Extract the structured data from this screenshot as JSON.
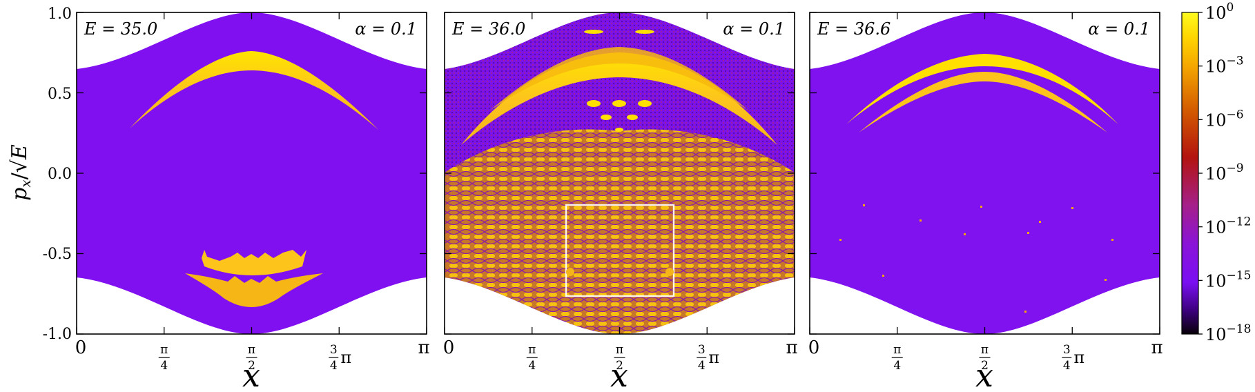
{
  "figure": {
    "ylabel": "p_x/√E",
    "ylabel_parts": {
      "p": "p",
      "sub": "x",
      "slash": "/",
      "sqrt": "√",
      "E": "E"
    }
  },
  "chart_data": [
    {
      "type": "heatmap",
      "panel": "left",
      "annotations": {
        "energy_label": "E = 35.0",
        "alpha_label": "α = 0.1"
      },
      "energy": 35.0,
      "alpha": 0.1,
      "xlabel": "x",
      "xlim": [
        0,
        3.14159
      ],
      "ylim": [
        -1.0,
        1.0
      ],
      "xticks": [
        "0",
        "π/4",
        "π/2",
        "3/4π",
        "π"
      ],
      "yticks": [
        "1.0",
        "0.5",
        "0.0",
        "-0.5",
        "-1.0"
      ],
      "background_level": "1e-14",
      "regions": [
        {
          "name": "upper-arc",
          "level": "1e0",
          "x_range": [
            0.55,
            2.6
          ],
          "y_peak": 0.76
        },
        {
          "name": "lower-crown",
          "level": "1e-1",
          "x_range": [
            1.15,
            2.0
          ],
          "y": -0.6
        },
        {
          "name": "lower-crown-2",
          "level": "1e-1",
          "x_range": [
            1.0,
            2.1
          ],
          "y": -0.73
        }
      ]
    },
    {
      "type": "heatmap",
      "panel": "middle",
      "annotations": {
        "energy_label": "E = 36.0",
        "alpha_label": "α = 0.1"
      },
      "energy": 36.0,
      "alpha": 0.1,
      "xlabel": "x",
      "xlim": [
        0,
        3.14159
      ],
      "ylim": [
        -1.0,
        1.0
      ],
      "xticks": [
        "0",
        "π/4",
        "π/2",
        "3/4π",
        "π"
      ],
      "yticks": [
        "1.0",
        "0.5",
        "0.0",
        "-0.5",
        "-1.0"
      ],
      "background_level": "mixed",
      "inset_box": {
        "x_range": [
          1.1,
          2.05
        ],
        "y_range": [
          -0.76,
          -0.19
        ]
      }
    },
    {
      "type": "heatmap",
      "panel": "right",
      "annotations": {
        "energy_label": "E = 36.6",
        "alpha_label": "α = 0.1"
      },
      "energy": 36.6,
      "alpha": 0.1,
      "xlabel": "x",
      "xlim": [
        0,
        3.14159
      ],
      "ylim": [
        -1.0,
        1.0
      ],
      "xticks": [
        "0",
        "π/4",
        "π/2",
        "3/4π",
        "π"
      ],
      "yticks": [
        "1.0",
        "0.5",
        "0.0",
        "-0.5",
        "-1.0"
      ],
      "background_level": "1e-14",
      "regions": [
        {
          "name": "thin-arcs",
          "level": "1e0",
          "x_range": [
            0.45,
            2.7
          ],
          "y_peak": 0.72
        }
      ]
    }
  ],
  "colorbar": {
    "label_base": "10",
    "ticks": [
      {
        "exp": "0",
        "value": 1
      },
      {
        "exp": "−3",
        "value": 0.001
      },
      {
        "exp": "−6",
        "value": 1e-06
      },
      {
        "exp": "−9",
        "value": 1e-09
      },
      {
        "exp": "−12",
        "value": 1e-12
      },
      {
        "exp": "−15",
        "value": 1e-15
      },
      {
        "exp": "−18",
        "value": 1e-18
      }
    ],
    "colormap": "gnuplot (black-purple-red-orange-yellow)",
    "colors": [
      "#fffb1e",
      "#f4a500",
      "#d45d00",
      "#b3140f",
      "#a5208a",
      "#8110f0",
      "#2b0030"
    ]
  }
}
